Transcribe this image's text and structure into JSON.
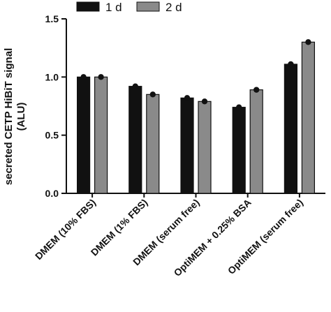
{
  "chart_data": {
    "type": "bar",
    "ylabel_lines": [
      "secreted CETP HiBiT signal",
      "(ALU)"
    ],
    "ylim": [
      0,
      1.5
    ],
    "yticks": [
      "0.0",
      "0.5",
      "1.0",
      "1.5"
    ],
    "categories": [
      "DMEM (10% FBS)",
      "DMEM (1% FBS)",
      "DMEM (serum free)",
      "OptiMEM + 0.25% BSA",
      "OptiMEM (serum free)"
    ],
    "series": [
      {
        "name": "1 d",
        "color": "#111111",
        "values": [
          1.0,
          0.92,
          0.82,
          0.74,
          1.11
        ]
      },
      {
        "name": "2 d",
        "color": "#8a8a8a",
        "values": [
          1.0,
          0.85,
          0.79,
          0.89,
          1.3
        ]
      }
    ],
    "legend_position": "top",
    "grid": false
  }
}
